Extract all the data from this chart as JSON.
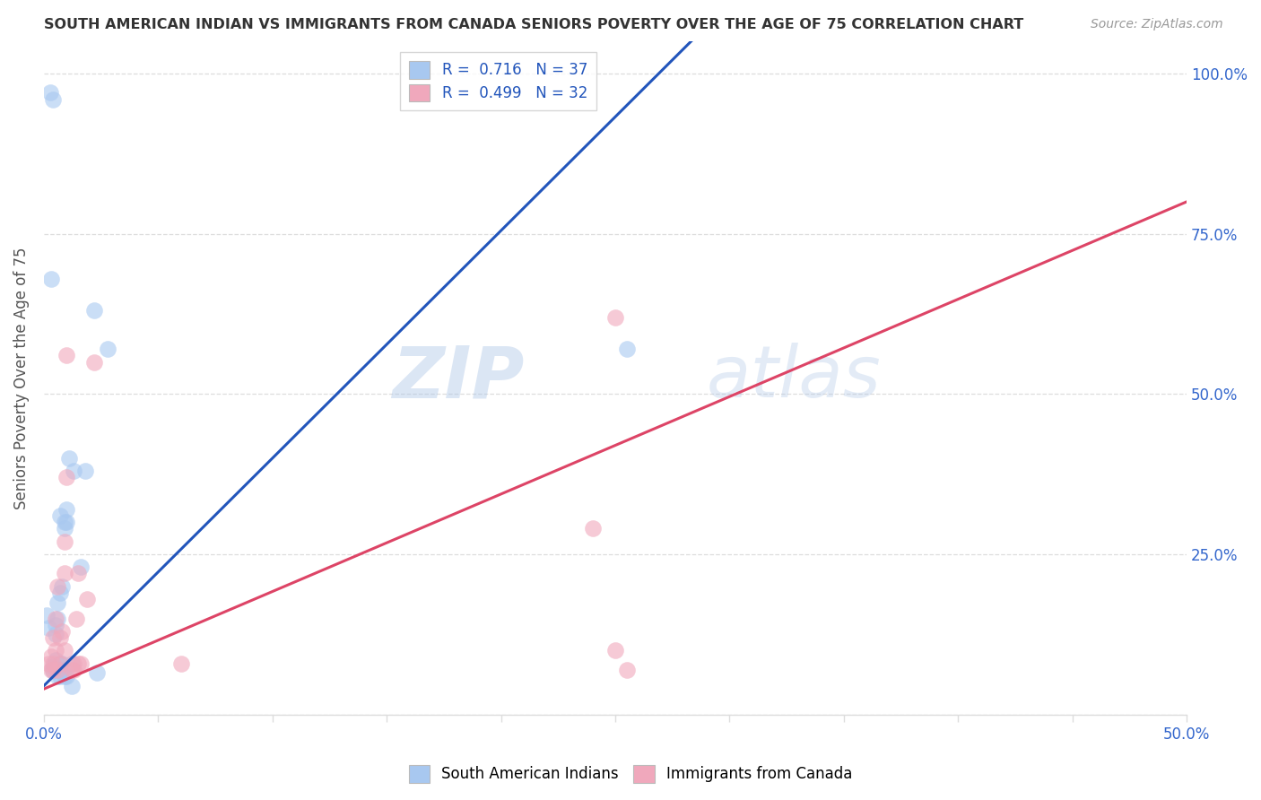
{
  "title": "SOUTH AMERICAN INDIAN VS IMMIGRANTS FROM CANADA SENIORS POVERTY OVER THE AGE OF 75 CORRELATION CHART",
  "source": "Source: ZipAtlas.com",
  "ylabel": "Seniors Poverty Over the Age of 75",
  "watermark_zip": "ZIP",
  "watermark_atlas": "atlas",
  "legend_blue_r": "R = ",
  "legend_blue_r_val": "0.716",
  "legend_blue_n": "N = ",
  "legend_blue_n_val": "37",
  "legend_pink_r": "R = ",
  "legend_pink_r_val": "0.499",
  "legend_pink_n": "N = ",
  "legend_pink_n_val": "32",
  "legend_blue_label": "South American Indians",
  "legend_pink_label": "Immigrants from Canada",
  "blue_color": "#A8C8F0",
  "pink_color": "#F0A8BC",
  "line_blue_color": "#2255BB",
  "line_pink_color": "#DD4466",
  "blue_scatter": [
    [
      0.001,
      0.155
    ],
    [
      0.002,
      0.135
    ],
    [
      0.0028,
      0.97
    ],
    [
      0.0038,
      0.96
    ],
    [
      0.004,
      0.068
    ],
    [
      0.004,
      0.075
    ],
    [
      0.005,
      0.085
    ],
    [
      0.005,
      0.125
    ],
    [
      0.005,
      0.14
    ],
    [
      0.006,
      0.175
    ],
    [
      0.006,
      0.06
    ],
    [
      0.006,
      0.15
    ],
    [
      0.007,
      0.19
    ],
    [
      0.007,
      0.31
    ],
    [
      0.007,
      0.06
    ],
    [
      0.007,
      0.07
    ],
    [
      0.007,
      0.08
    ],
    [
      0.008,
      0.2
    ],
    [
      0.008,
      0.07
    ],
    [
      0.008,
      0.08
    ],
    [
      0.009,
      0.3
    ],
    [
      0.009,
      0.06
    ],
    [
      0.009,
      0.29
    ],
    [
      0.01,
      0.3
    ],
    [
      0.01,
      0.06
    ],
    [
      0.01,
      0.32
    ],
    [
      0.011,
      0.4
    ],
    [
      0.012,
      0.045
    ],
    [
      0.012,
      0.08
    ],
    [
      0.013,
      0.38
    ],
    [
      0.016,
      0.23
    ],
    [
      0.018,
      0.38
    ],
    [
      0.022,
      0.63
    ],
    [
      0.023,
      0.065
    ],
    [
      0.028,
      0.57
    ],
    [
      0.255,
      0.57
    ],
    [
      0.003,
      0.68
    ]
  ],
  "pink_scatter": [
    [
      0.002,
      0.08
    ],
    [
      0.003,
      0.07
    ],
    [
      0.003,
      0.09
    ],
    [
      0.004,
      0.08
    ],
    [
      0.004,
      0.12
    ],
    [
      0.004,
      0.07
    ],
    [
      0.005,
      0.1
    ],
    [
      0.005,
      0.15
    ],
    [
      0.006,
      0.07
    ],
    [
      0.006,
      0.2
    ],
    [
      0.007,
      0.08
    ],
    [
      0.007,
      0.12
    ],
    [
      0.008,
      0.13
    ],
    [
      0.009,
      0.27
    ],
    [
      0.009,
      0.1
    ],
    [
      0.009,
      0.22
    ],
    [
      0.01,
      0.37
    ],
    [
      0.01,
      0.56
    ],
    [
      0.012,
      0.07
    ],
    [
      0.013,
      0.08
    ],
    [
      0.013,
      0.07
    ],
    [
      0.014,
      0.15
    ],
    [
      0.015,
      0.22
    ],
    [
      0.015,
      0.08
    ],
    [
      0.016,
      0.08
    ],
    [
      0.019,
      0.18
    ],
    [
      0.022,
      0.55
    ],
    [
      0.06,
      0.08
    ],
    [
      0.24,
      0.29
    ],
    [
      0.25,
      0.62
    ],
    [
      0.25,
      0.1
    ],
    [
      0.255,
      0.07
    ]
  ],
  "xlim": [
    0.0,
    0.5
  ],
  "ylim": [
    0.0,
    1.05
  ],
  "blue_line_x": [
    0.0,
    0.5
  ],
  "blue_line_y": [
    0.045,
    1.82
  ],
  "pink_line_x": [
    0.0,
    0.5
  ],
  "pink_line_y": [
    0.04,
    0.8
  ],
  "xtick_positions": [
    0.0,
    0.05,
    0.1,
    0.15,
    0.2,
    0.25,
    0.3,
    0.35,
    0.4,
    0.45,
    0.5
  ],
  "ytick_positions": [
    0.0,
    0.25,
    0.5,
    0.75,
    1.0
  ],
  "right_ytick_labels": [
    "25.0%",
    "50.0%",
    "75.0%",
    "100.0%"
  ],
  "right_ytick_positions": [
    0.25,
    0.5,
    0.75,
    1.0
  ],
  "background_color": "#FFFFFF",
  "grid_color": "#DDDDDD",
  "tick_color": "#3366CC",
  "title_color": "#333333",
  "source_color": "#999999",
  "ylabel_color": "#555555"
}
